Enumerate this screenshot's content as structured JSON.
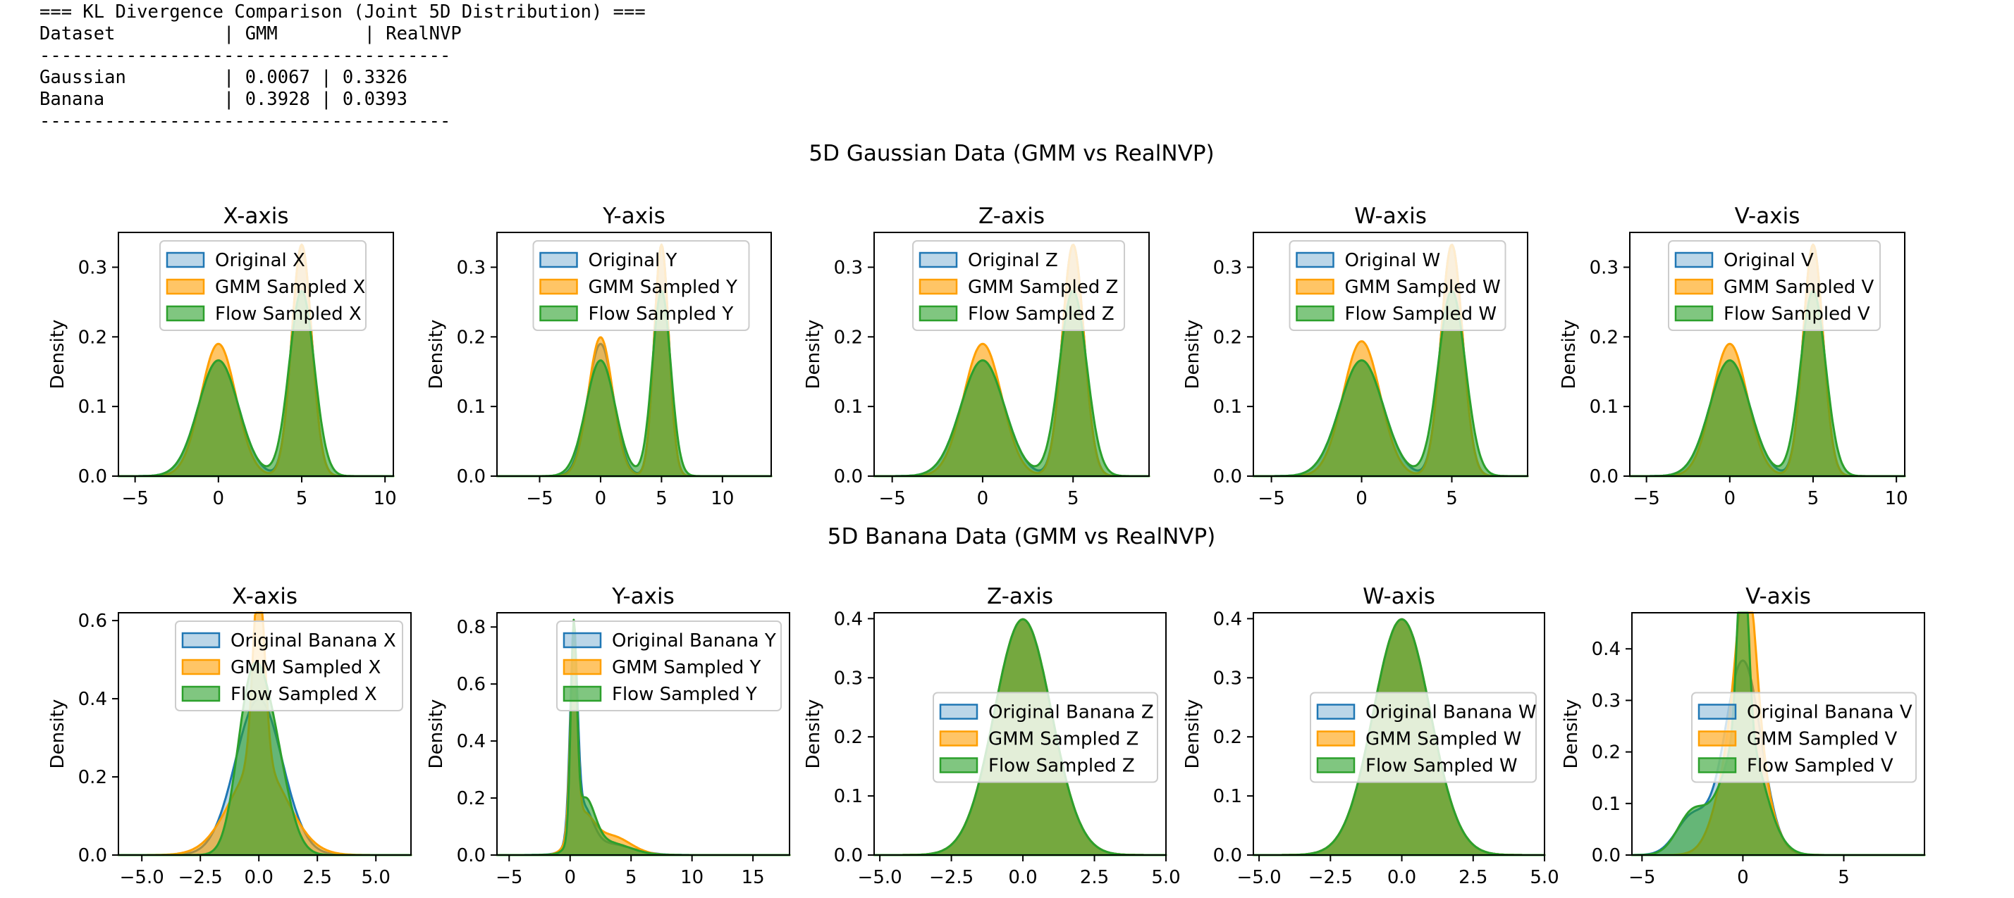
{
  "kl_table": {
    "title": "=== KL Divergence Comparison (Joint 5D Distribution) ===",
    "header": "Dataset          | GMM        | RealNVP",
    "separator": "--------------------------------------",
    "rows": [
      "Gaussian         | 0.0067 | 0.3326",
      "Banana           | 0.3928 | 0.0393"
    ]
  },
  "colors": {
    "original": "#1f77b4",
    "gmm": "#ff9f00",
    "flow": "#2ca02c"
  },
  "chart_data": [
    {
      "title": "5D Gaussian Data (GMM vs RealNVP)",
      "type": "area",
      "panels": [
        {
          "title": "X-axis",
          "ylabel": "Density",
          "xlim": [
            -6,
            10.5
          ],
          "ylim": [
            0,
            0.35
          ],
          "xticks": [
            -5,
            0,
            5,
            10
          ],
          "yticks": [
            0.0,
            0.1,
            0.2,
            0.3
          ],
          "legend": "top-center",
          "series": [
            {
              "name": "Original X",
              "components": [
                [
                  0.5,
                  0,
                  1.2
                ],
                [
                  0.5,
                  5,
                  0.6
                ]
              ]
            },
            {
              "name": "GMM Sampled X",
              "components": [
                [
                  0.5,
                  0,
                  1.05
                ],
                [
                  0.5,
                  5,
                  0.6
                ]
              ]
            },
            {
              "name": "Flow Sampled X",
              "components": [
                [
                  0.5,
                  0,
                  1.2
                ],
                [
                  0.5,
                  5,
                  0.75
                ]
              ]
            }
          ]
        },
        {
          "title": "Y-axis",
          "ylabel": "Density",
          "xlim": [
            -8.5,
            14
          ],
          "ylim": [
            0,
            0.35
          ],
          "xticks": [
            -5,
            0,
            5,
            10
          ],
          "yticks": [
            0.0,
            0.1,
            0.2,
            0.3
          ],
          "legend": "top-center",
          "series": [
            {
              "name": "Original Y",
              "components": [
                [
                  0.5,
                  0,
                  1.05
                ],
                [
                  0.5,
                  5,
                  0.6
                ]
              ]
            },
            {
              "name": "GMM Sampled Y",
              "components": [
                [
                  0.5,
                  0,
                  1.0
                ],
                [
                  0.5,
                  5,
                  0.6
                ]
              ]
            },
            {
              "name": "Flow Sampled Y",
              "components": [
                [
                  0.5,
                  0,
                  1.2
                ],
                [
                  0.5,
                  5,
                  0.75
                ]
              ]
            }
          ]
        },
        {
          "title": "Z-axis",
          "ylabel": "Density",
          "xlim": [
            -6,
            9.2
          ],
          "ylim": [
            0,
            0.35
          ],
          "xticks": [
            -5,
            0,
            5
          ],
          "yticks": [
            0.0,
            0.1,
            0.2,
            0.3
          ],
          "legend": "top-center",
          "series": [
            {
              "name": "Original Z",
              "components": [
                [
                  0.5,
                  0,
                  1.2
                ],
                [
                  0.5,
                  5,
                  0.6
                ]
              ]
            },
            {
              "name": "GMM Sampled Z",
              "components": [
                [
                  0.5,
                  0,
                  1.05
                ],
                [
                  0.5,
                  5,
                  0.6
                ]
              ]
            },
            {
              "name": "Flow Sampled Z",
              "components": [
                [
                  0.5,
                  0,
                  1.2
                ],
                [
                  0.5,
                  5,
                  0.75
                ]
              ]
            }
          ]
        },
        {
          "title": "W-axis",
          "ylabel": "Density",
          "xlim": [
            -6,
            9.2
          ],
          "ylim": [
            0,
            0.35
          ],
          "xticks": [
            -5,
            0,
            5
          ],
          "yticks": [
            0.0,
            0.1,
            0.2,
            0.3
          ],
          "legend": "top-center",
          "series": [
            {
              "name": "Original W",
              "components": [
                [
                  0.5,
                  0,
                  1.2
                ],
                [
                  0.5,
                  5,
                  0.6
                ]
              ]
            },
            {
              "name": "GMM Sampled W",
              "components": [
                [
                  0.5,
                  0,
                  1.03
                ],
                [
                  0.5,
                  5,
                  0.6
                ]
              ]
            },
            {
              "name": "Flow Sampled W",
              "components": [
                [
                  0.5,
                  0,
                  1.2
                ],
                [
                  0.5,
                  5,
                  0.75
                ]
              ]
            }
          ]
        },
        {
          "title": "V-axis",
          "ylabel": "Density",
          "xlim": [
            -6,
            10.5
          ],
          "ylim": [
            0,
            0.35
          ],
          "xticks": [
            -5,
            0,
            5,
            10
          ],
          "yticks": [
            0.0,
            0.1,
            0.2,
            0.3
          ],
          "legend": "top-center",
          "series": [
            {
              "name": "Original V",
              "components": [
                [
                  0.5,
                  0,
                  1.2
                ],
                [
                  0.5,
                  5,
                  0.6
                ]
              ]
            },
            {
              "name": "GMM Sampled V",
              "components": [
                [
                  0.5,
                  0,
                  1.05
                ],
                [
                  0.5,
                  5,
                  0.6
                ]
              ]
            },
            {
              "name": "Flow Sampled V",
              "components": [
                [
                  0.5,
                  0,
                  1.2
                ],
                [
                  0.5,
                  5,
                  0.75
                ]
              ]
            }
          ]
        }
      ]
    },
    {
      "title": "5D Banana Data (GMM vs RealNVP)",
      "type": "area",
      "panels": [
        {
          "title": "X-axis",
          "ylabel": "Density",
          "xlim": [
            -6,
            6.5
          ],
          "ylim": [
            0,
            0.62
          ],
          "xticks": [
            -5.0,
            -2.5,
            0.0,
            2.5,
            5.0
          ],
          "yticks": [
            0.0,
            0.2,
            0.4,
            0.6
          ],
          "legend": "top-right",
          "series": [
            {
              "name": "Original Banana X",
              "components": [
                [
                  1,
                  0,
                  1.0
                ]
              ]
            },
            {
              "name": "GMM Sampled X",
              "components": [
                [
                  0.3,
                  0,
                  0.25
                ],
                [
                  0.7,
                  0,
                  1.2
                ]
              ]
            },
            {
              "name": "Flow Sampled X",
              "components": [
                [
                  0.42,
                  -0.45,
                  0.58
                ],
                [
                  0.58,
                  0.4,
                  0.72
                ]
              ]
            }
          ]
        },
        {
          "title": "Y-axis",
          "ylabel": "Density",
          "xlim": [
            -6,
            18
          ],
          "ylim": [
            0,
            0.85
          ],
          "xticks": [
            -5,
            0,
            5,
            10,
            15
          ],
          "yticks": [
            0.0,
            0.2,
            0.4,
            0.6,
            0.8
          ],
          "legend": "top-right",
          "series": [
            {
              "name": "Original Banana Y",
              "components": [
                [
                  0.5,
                  0.3,
                  0.3
                ],
                [
                  0.3,
                  1.0,
                  0.8
                ],
                [
                  0.2,
                  3.0,
                  2.0
                ]
              ]
            },
            {
              "name": "GMM Sampled Y",
              "components": [
                [
                  0.45,
                  0.3,
                  0.28
                ],
                [
                  0.28,
                  1.0,
                  0.9
                ],
                [
                  0.27,
                  3.3,
                  1.6
                ]
              ]
            },
            {
              "name": "Flow Sampled Y",
              "components": [
                [
                  0.45,
                  0.3,
                  0.25
                ],
                [
                  0.35,
                  1.2,
                  0.8
                ],
                [
                  0.2,
                  3.0,
                  1.8
                ]
              ]
            }
          ]
        },
        {
          "title": "Z-axis",
          "ylabel": "Density",
          "xlim": [
            -5.2,
            5.0
          ],
          "ylim": [
            0,
            0.41
          ],
          "xticks": [
            -5.0,
            -2.5,
            0.0,
            2.5,
            5.0
          ],
          "yticks": [
            0.0,
            0.1,
            0.2,
            0.3,
            0.4
          ],
          "legend": "center-right",
          "series": [
            {
              "name": "Original Banana Z",
              "components": [
                [
                  1,
                  0,
                  1.0
                ]
              ]
            },
            {
              "name": "GMM Sampled Z",
              "components": [
                [
                  1,
                  0,
                  1.0
                ]
              ]
            },
            {
              "name": "Flow Sampled Z",
              "components": [
                [
                  1,
                  0,
                  1.0
                ]
              ]
            }
          ]
        },
        {
          "title": "W-axis",
          "ylabel": "Density",
          "xlim": [
            -5.2,
            5.0
          ],
          "ylim": [
            0,
            0.41
          ],
          "xticks": [
            -5.0,
            -2.5,
            0.0,
            2.5,
            5.0
          ],
          "yticks": [
            0.0,
            0.1,
            0.2,
            0.3,
            0.4
          ],
          "legend": "center-right",
          "series": [
            {
              "name": "Original Banana W",
              "components": [
                [
                  1,
                  0,
                  1.0
                ]
              ]
            },
            {
              "name": "GMM Sampled W",
              "components": [
                [
                  1,
                  0,
                  1.0
                ]
              ]
            },
            {
              "name": "Flow Sampled W",
              "components": [
                [
                  1,
                  0,
                  1.0
                ]
              ]
            }
          ]
        },
        {
          "title": "V-axis",
          "ylabel": "Density",
          "xlim": [
            -5.5,
            9.0
          ],
          "ylim": [
            0,
            0.47
          ],
          "xticks": [
            -5,
            0,
            5
          ],
          "yticks": [
            0.0,
            0.1,
            0.2,
            0.3,
            0.4
          ],
          "legend": "center-right",
          "series": [
            {
              "name": "Original Banana V",
              "components": [
                [
                  0.85,
                  0,
                  0.9
                ],
                [
                  0.15,
                  -2.5,
                  0.8
                ]
              ]
            },
            {
              "name": "GMM Sampled V",
              "components": [
                [
                  0.7,
                  0,
                  0.95
                ],
                [
                  0.3,
                  0.2,
                  0.45
                ]
              ]
            },
            {
              "name": "Flow Sampled V",
              "components": [
                [
                  0.25,
                  0,
                  0.25
                ],
                [
                  0.6,
                  0,
                  1.0
                ],
                [
                  0.15,
                  -2.5,
                  0.75
                ]
              ]
            }
          ]
        }
      ]
    }
  ]
}
